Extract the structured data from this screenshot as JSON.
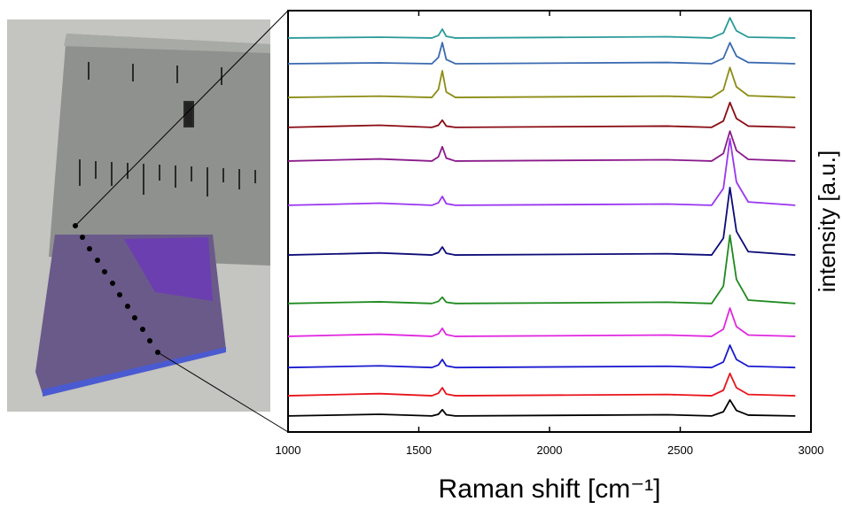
{
  "chart_data": {
    "type": "line",
    "xlabel": "Raman shift  [cm⁻¹]",
    "ylabel": "intensity [a.u.]",
    "x": [
      1000,
      1350,
      1550,
      1575,
      1590,
      1605,
      1640,
      2450,
      2620,
      2665,
      2690,
      2715,
      2760,
      2940
    ],
    "xlim": [
      1000,
      3000
    ],
    "xticks": [
      1000,
      1500,
      2000,
      2500,
      3000
    ],
    "ylim": [
      0,
      100
    ],
    "series": [
      {
        "color": "#000000",
        "values": [
          3.8,
          4.2,
          3.8,
          4.2,
          5.3,
          4.1,
          3.8,
          4.1,
          3.8,
          4.8,
          7.6,
          5.1,
          4.0,
          3.8
        ]
      },
      {
        "color": "#e8141c",
        "values": [
          8.6,
          9.1,
          8.6,
          9.2,
          10.5,
          9.0,
          8.6,
          8.9,
          8.6,
          9.9,
          13.9,
          10.5,
          8.9,
          8.6
        ]
      },
      {
        "color": "#1a1ad0",
        "values": [
          15.3,
          15.7,
          15.3,
          15.9,
          17.2,
          15.7,
          15.3,
          15.6,
          15.3,
          16.6,
          20.6,
          17.2,
          15.6,
          15.3
        ]
      },
      {
        "color": "#e028e0",
        "values": [
          22.7,
          23.2,
          22.7,
          23.3,
          24.6,
          23.1,
          22.7,
          23.0,
          22.7,
          24.4,
          29.4,
          25.0,
          23.0,
          22.7
        ]
      },
      {
        "color": "#1e8a1e",
        "values": [
          30.5,
          30.9,
          30.5,
          31.0,
          32.0,
          30.8,
          30.5,
          30.8,
          30.5,
          34.6,
          46.7,
          36.2,
          31.3,
          30.5
        ]
      },
      {
        "color": "#0c0c78",
        "values": [
          42.0,
          42.5,
          42.0,
          42.6,
          43.9,
          42.4,
          42.0,
          42.3,
          42.0,
          46.0,
          58.0,
          47.6,
          42.8,
          42.0
        ]
      },
      {
        "color": "#9a35f0",
        "values": [
          53.8,
          54.3,
          53.8,
          54.4,
          55.9,
          54.2,
          53.8,
          54.1,
          53.8,
          57.8,
          69.6,
          59.3,
          54.6,
          53.8
        ]
      },
      {
        "color": "#8a1a8a",
        "values": [
          64.3,
          64.8,
          64.3,
          65.3,
          67.7,
          65.0,
          64.3,
          64.6,
          64.3,
          66.1,
          71.4,
          66.8,
          64.7,
          64.3
        ]
      },
      {
        "color": "#8a0c14",
        "values": [
          72.3,
          72.8,
          72.3,
          72.8,
          74.0,
          72.6,
          72.3,
          72.6,
          72.3,
          73.8,
          78.2,
          74.4,
          72.6,
          72.3
        ]
      },
      {
        "color": "#8c8c14",
        "values": [
          79.4,
          79.7,
          79.4,
          81.3,
          85.7,
          80.7,
          79.4,
          79.7,
          79.4,
          81.2,
          86.5,
          81.9,
          79.8,
          79.4
        ]
      },
      {
        "color": "#3a6ab0",
        "values": [
          87.4,
          87.6,
          87.4,
          88.9,
          92.4,
          88.4,
          87.4,
          87.7,
          87.4,
          88.7,
          92.4,
          89.2,
          87.7,
          87.4
        ]
      },
      {
        "color": "#2a9a9a",
        "values": [
          93.5,
          93.7,
          93.5,
          94.1,
          95.6,
          93.9,
          93.5,
          93.8,
          93.5,
          94.7,
          98.3,
          95.2,
          93.7,
          93.5
        ]
      }
    ]
  }
}
